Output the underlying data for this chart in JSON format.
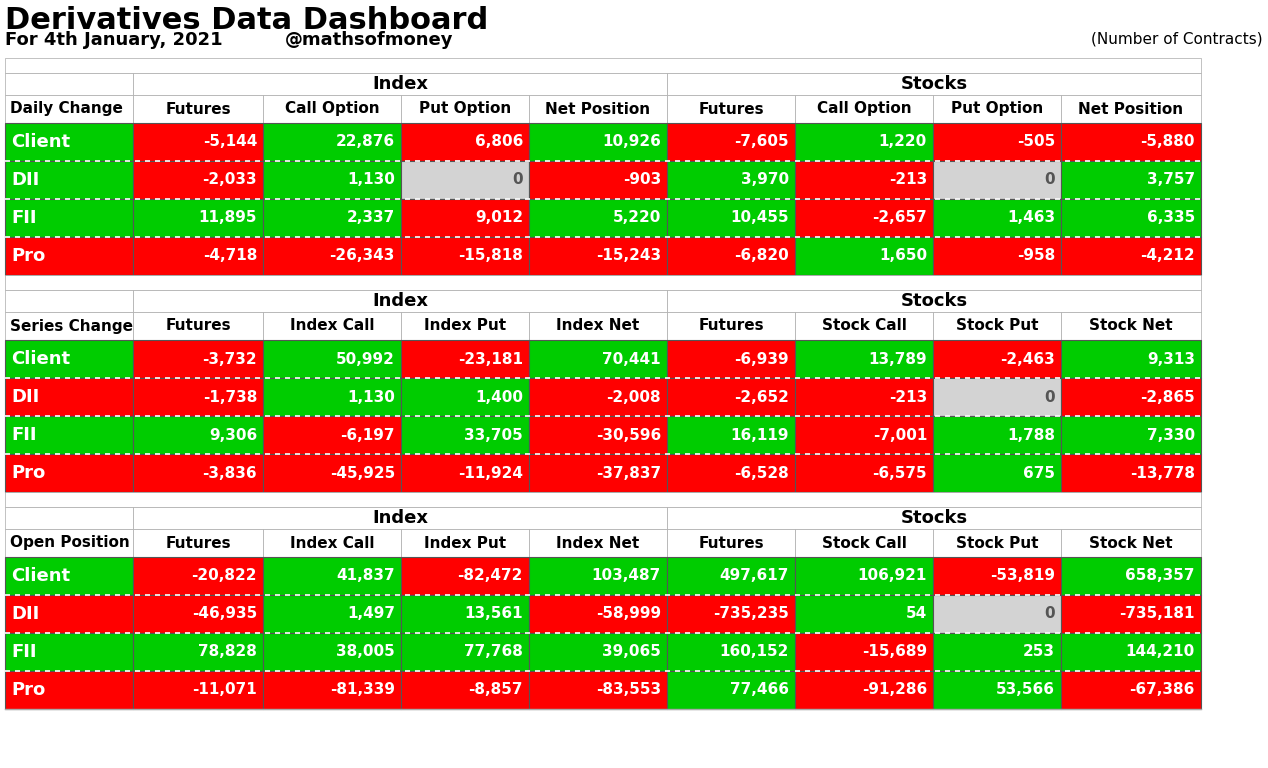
{
  "title": "Derivatives Data Dashboard",
  "subtitle_left": "For 4th January, 2021",
  "subtitle_mid": "@mathsofmoney",
  "subtitle_right": "(Number of Contracts)",
  "bg_color": "#ffffff",
  "sections": [
    {
      "section_label": "Daily Change",
      "index_label": "Index",
      "stocks_label": "Stocks",
      "col_headers_index": [
        "Futures",
        "Call Option",
        "Put Option",
        "Net Position"
      ],
      "col_headers_stocks": [
        "Futures",
        "Call Option",
        "Put Option",
        "Net Position"
      ],
      "rows": [
        {
          "label": "Client",
          "label_bg": "#00cc00",
          "values": [
            "-5,144",
            "22,876",
            "6,806",
            "10,926",
            "-7,605",
            "1,220",
            "-505",
            "-5,880"
          ],
          "colors": [
            "#ff0000",
            "#00cc00",
            "#ff0000",
            "#00cc00",
            "#ff0000",
            "#00cc00",
            "#ff0000",
            "#ff0000"
          ]
        },
        {
          "label": "DII",
          "label_bg": "#00cc00",
          "values": [
            "-2,033",
            "1,130",
            "0",
            "-903",
            "3,970",
            "-213",
            "0",
            "3,757"
          ],
          "colors": [
            "#ff0000",
            "#00cc00",
            "#d3d3d3",
            "#ff0000",
            "#00cc00",
            "#ff0000",
            "#d3d3d3",
            "#00cc00"
          ]
        },
        {
          "label": "FII",
          "label_bg": "#00cc00",
          "values": [
            "11,895",
            "2,337",
            "9,012",
            "5,220",
            "10,455",
            "-2,657",
            "1,463",
            "6,335"
          ],
          "colors": [
            "#00cc00",
            "#00cc00",
            "#ff0000",
            "#00cc00",
            "#00cc00",
            "#ff0000",
            "#00cc00",
            "#00cc00"
          ]
        },
        {
          "label": "Pro",
          "label_bg": "#ff0000",
          "values": [
            "-4,718",
            "-26,343",
            "-15,818",
            "-15,243",
            "-6,820",
            "1,650",
            "-958",
            "-4,212"
          ],
          "colors": [
            "#ff0000",
            "#ff0000",
            "#ff0000",
            "#ff0000",
            "#ff0000",
            "#00cc00",
            "#ff0000",
            "#ff0000"
          ]
        }
      ]
    },
    {
      "section_label": "Series Change",
      "index_label": "Index",
      "stocks_label": "Stocks",
      "col_headers_index": [
        "Futures",
        "Index Call",
        "Index Put",
        "Index Net"
      ],
      "col_headers_stocks": [
        "Futures",
        "Stock Call",
        "Stock Put",
        "Stock Net"
      ],
      "rows": [
        {
          "label": "Client",
          "label_bg": "#00cc00",
          "values": [
            "-3,732",
            "50,992",
            "-23,181",
            "70,441",
            "-6,939",
            "13,789",
            "-2,463",
            "9,313"
          ],
          "colors": [
            "#ff0000",
            "#00cc00",
            "#ff0000",
            "#00cc00",
            "#ff0000",
            "#00cc00",
            "#ff0000",
            "#00cc00"
          ]
        },
        {
          "label": "DII",
          "label_bg": "#ff0000",
          "values": [
            "-1,738",
            "1,130",
            "1,400",
            "-2,008",
            "-2,652",
            "-213",
            "0",
            "-2,865"
          ],
          "colors": [
            "#ff0000",
            "#00cc00",
            "#00cc00",
            "#ff0000",
            "#ff0000",
            "#ff0000",
            "#d3d3d3",
            "#ff0000"
          ]
        },
        {
          "label": "FII",
          "label_bg": "#00cc00",
          "values": [
            "9,306",
            "-6,197",
            "33,705",
            "-30,596",
            "16,119",
            "-7,001",
            "1,788",
            "7,330"
          ],
          "colors": [
            "#00cc00",
            "#ff0000",
            "#00cc00",
            "#ff0000",
            "#00cc00",
            "#ff0000",
            "#00cc00",
            "#00cc00"
          ]
        },
        {
          "label": "Pro",
          "label_bg": "#ff0000",
          "values": [
            "-3,836",
            "-45,925",
            "-11,924",
            "-37,837",
            "-6,528",
            "-6,575",
            "675",
            "-13,778"
          ],
          "colors": [
            "#ff0000",
            "#ff0000",
            "#ff0000",
            "#ff0000",
            "#ff0000",
            "#ff0000",
            "#00cc00",
            "#ff0000"
          ]
        }
      ]
    },
    {
      "section_label": "Open Position",
      "index_label": "Index",
      "stocks_label": "Stocks",
      "col_headers_index": [
        "Futures",
        "Index Call",
        "Index Put",
        "Index Net"
      ],
      "col_headers_stocks": [
        "Futures",
        "Stock Call",
        "Stock Put",
        "Stock Net"
      ],
      "rows": [
        {
          "label": "Client",
          "label_bg": "#00cc00",
          "values": [
            "-20,822",
            "41,837",
            "-82,472",
            "103,487",
            "497,617",
            "106,921",
            "-53,819",
            "658,357"
          ],
          "colors": [
            "#ff0000",
            "#00cc00",
            "#ff0000",
            "#00cc00",
            "#00cc00",
            "#00cc00",
            "#ff0000",
            "#00cc00"
          ]
        },
        {
          "label": "DII",
          "label_bg": "#ff0000",
          "values": [
            "-46,935",
            "1,497",
            "13,561",
            "-58,999",
            "-735,235",
            "54",
            "0",
            "-735,181"
          ],
          "colors": [
            "#ff0000",
            "#00cc00",
            "#00cc00",
            "#ff0000",
            "#ff0000",
            "#00cc00",
            "#d3d3d3",
            "#ff0000"
          ]
        },
        {
          "label": "FII",
          "label_bg": "#00cc00",
          "values": [
            "78,828",
            "38,005",
            "77,768",
            "39,065",
            "160,152",
            "-15,689",
            "253",
            "144,210"
          ],
          "colors": [
            "#00cc00",
            "#00cc00",
            "#00cc00",
            "#00cc00",
            "#00cc00",
            "#ff0000",
            "#00cc00",
            "#00cc00"
          ]
        },
        {
          "label": "Pro",
          "label_bg": "#ff0000",
          "values": [
            "-11,071",
            "-81,339",
            "-8,857",
            "-83,553",
            "77,466",
            "-91,286",
            "53,566",
            "-67,386"
          ],
          "colors": [
            "#ff0000",
            "#ff0000",
            "#ff0000",
            "#ff0000",
            "#00cc00",
            "#ff0000",
            "#00cc00",
            "#ff0000"
          ]
        }
      ]
    }
  ]
}
